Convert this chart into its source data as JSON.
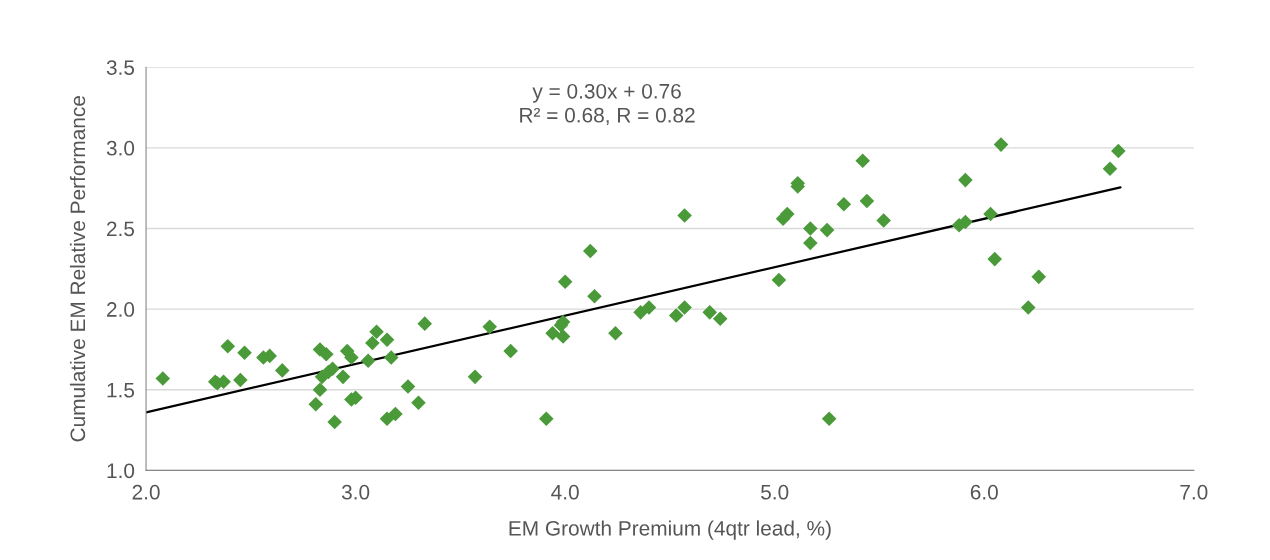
{
  "chart_data": {
    "type": "scatter",
    "xlabel": "EM Growth Premium (4qtr lead, %)",
    "ylabel": "Cumulative EM Relative Performance",
    "annotations": [
      "y = 0.30x + 0.76\nR² = 0.68, R = 0.82"
    ],
    "xlim": [
      2.0,
      7.0
    ],
    "xticks": [
      {
        "value": 2,
        "label": "2.0"
      },
      {
        "value": 3,
        "label": "3.0"
      },
      {
        "value": 4,
        "label": "4.0"
      },
      {
        "value": 5,
        "label": "5.0"
      },
      {
        "value": 6,
        "label": "6.0"
      },
      {
        "value": 7,
        "label": "7.0"
      }
    ],
    "ylim": [
      1.0,
      3.5
    ],
    "yticks": [
      {
        "value": 1,
        "label": "1.0"
      },
      {
        "value": 1.5,
        "label": "1.5"
      },
      {
        "value": 2,
        "label": "2.0"
      },
      {
        "value": 2.5,
        "label": "2.5"
      },
      {
        "value": 3,
        "label": "3.0"
      },
      {
        "value": 3.5,
        "label": "3.5"
      }
    ],
    "grid": "y",
    "series": [
      {
        "marker": "diamond",
        "color": "#4a9a3a",
        "x": [
          2.08,
          2.33,
          2.34,
          2.37,
          2.39,
          2.45,
          2.47,
          2.56,
          2.59,
          2.65,
          2.81,
          2.83,
          2.83,
          2.84,
          2.86,
          2.87,
          2.89,
          2.9,
          2.94,
          2.96,
          2.98,
          2.98,
          3.0,
          3.06,
          3.08,
          3.1,
          3.15,
          3.15,
          3.17,
          3.19,
          3.25,
          3.3,
          3.33,
          3.57,
          3.64,
          3.74,
          3.91,
          3.94,
          3.98,
          3.99,
          3.99,
          4.0,
          4.12,
          4.14,
          4.24,
          4.36,
          4.4,
          4.53,
          4.57,
          4.57,
          4.69,
          4.74,
          5.02,
          5.04,
          5.06,
          5.11,
          5.11,
          5.17,
          5.17,
          5.25,
          5.26,
          5.33,
          5.42,
          5.44,
          5.52,
          5.88,
          5.91,
          5.91,
          6.03,
          6.05,
          6.08,
          6.21,
          6.26,
          6.6,
          6.64
        ],
        "values": [
          1.57,
          1.55,
          1.54,
          1.55,
          1.77,
          1.56,
          1.73,
          1.7,
          1.71,
          1.62,
          1.41,
          1.75,
          1.5,
          1.58,
          1.72,
          1.61,
          1.63,
          1.3,
          1.58,
          1.74,
          1.7,
          1.44,
          1.45,
          1.68,
          1.79,
          1.86,
          1.81,
          1.32,
          1.7,
          1.35,
          1.52,
          1.42,
          1.91,
          1.58,
          1.89,
          1.74,
          1.32,
          1.85,
          1.9,
          1.83,
          1.92,
          2.17,
          2.36,
          2.08,
          1.85,
          1.98,
          2.01,
          1.96,
          2.58,
          2.01,
          1.98,
          1.94,
          2.18,
          2.56,
          2.59,
          2.78,
          2.76,
          2.41,
          2.5,
          2.49,
          1.32,
          2.65,
          2.92,
          2.67,
          2.55,
          2.52,
          2.54,
          2.8,
          2.59,
          2.31,
          3.02,
          2.01,
          2.2,
          2.87,
          2.98
        ]
      },
      {
        "type": "line",
        "color": "#000000",
        "marker": "none",
        "line_style": "solid",
        "x": [
          2.0,
          6.65
        ],
        "values": [
          1.36,
          2.755
        ]
      }
    ]
  }
}
